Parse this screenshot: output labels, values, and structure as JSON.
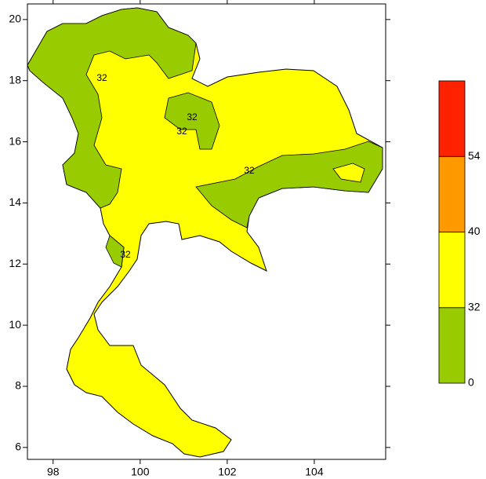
{
  "map": {
    "xlim": [
      97.41,
      105.64
    ],
    "ylim": [
      5.61,
      20.51
    ],
    "xticks": [
      98,
      100,
      102,
      104
    ],
    "yticks": [
      6,
      8,
      10,
      12,
      14,
      16,
      18,
      20
    ],
    "contour_labels": [
      "32",
      "32",
      "32",
      "32",
      "32"
    ],
    "colorbar": {
      "levels": [
        0,
        32,
        40,
        54
      ],
      "colors": [
        "#99cc00",
        "#ffff00",
        "#ff9900",
        "#ff2200"
      ]
    }
  }
}
